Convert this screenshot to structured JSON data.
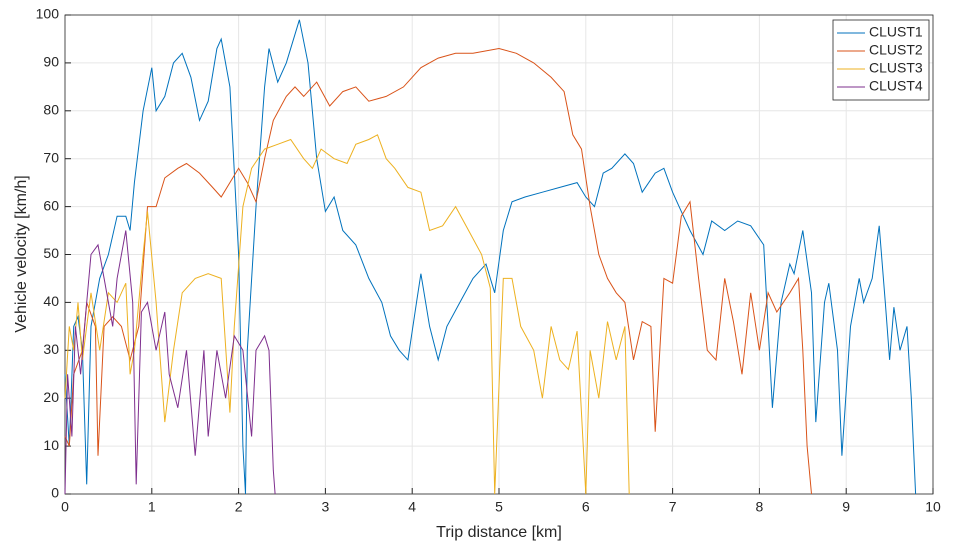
{
  "chart_data": {
    "type": "line",
    "xlabel": "Trip distance [km]",
    "ylabel": "Vehicle velocity [km/h]",
    "xlim": [
      0,
      10
    ],
    "xticks": [
      0,
      1,
      2,
      3,
      4,
      5,
      6,
      7,
      8,
      9,
      10
    ],
    "ylim": [
      0,
      100
    ],
    "yticks": [
      0,
      10,
      20,
      30,
      40,
      50,
      60,
      70,
      80,
      90,
      100
    ],
    "grid": true,
    "legend": "top-right",
    "series": [
      {
        "name": "CLUST1",
        "color": "#0072bd",
        "x": [
          0,
          0.05,
          0.1,
          0.15,
          0.2,
          0.25,
          0.3,
          0.4,
          0.5,
          0.6,
          0.7,
          0.75,
          0.8,
          0.9,
          1.0,
          1.05,
          1.15,
          1.25,
          1.35,
          1.45,
          1.55,
          1.65,
          1.75,
          1.8,
          1.9,
          2.0,
          2.05,
          2.08,
          2.1,
          2.2,
          2.3,
          2.35,
          2.45,
          2.55,
          2.7,
          2.8,
          2.9,
          3.0,
          3.1,
          3.2,
          3.35,
          3.5,
          3.65,
          3.75,
          3.85,
          3.95,
          4.05,
          4.1,
          4.2,
          4.3,
          4.4,
          4.55,
          4.7,
          4.85,
          4.95,
          5.05,
          5.15,
          5.3,
          5.5,
          5.7,
          5.9,
          6.0,
          6.1,
          6.2,
          6.3,
          6.45,
          6.55,
          6.65,
          6.8,
          6.9,
          7.0,
          7.1,
          7.2,
          7.35,
          7.45,
          7.6,
          7.75,
          7.9,
          8.05,
          8.1,
          8.15,
          8.25,
          8.35,
          8.4,
          8.5,
          8.6,
          8.65,
          8.75,
          8.8,
          8.9,
          8.95,
          9.05,
          9.15,
          9.2,
          9.3,
          9.38,
          9.45,
          9.5,
          9.55,
          9.62,
          9.7,
          9.75,
          9.8
        ],
        "values": [
          25,
          10,
          35,
          37,
          30,
          2,
          35,
          45,
          50,
          58,
          58,
          55,
          65,
          80,
          89,
          80,
          83,
          90,
          92,
          87,
          78,
          82,
          93,
          95,
          85,
          50,
          10,
          0,
          30,
          60,
          85,
          93,
          86,
          90,
          99,
          90,
          70,
          59,
          62,
          55,
          52,
          45,
          40,
          33,
          30,
          28,
          40,
          46,
          35,
          28,
          35,
          40,
          45,
          48,
          42,
          55,
          61,
          62,
          63,
          64,
          65,
          62,
          60,
          67,
          68,
          71,
          69,
          63,
          67,
          68,
          63,
          59,
          55,
          50,
          57,
          55,
          57,
          56,
          52,
          35,
          18,
          40,
          48,
          46,
          55,
          42,
          15,
          40,
          44,
          30,
          8,
          35,
          45,
          40,
          45,
          56,
          40,
          28,
          39,
          30,
          35,
          20,
          0
        ]
      },
      {
        "name": "CLUST2",
        "color": "#d95319",
        "x": [
          0,
          0.05,
          0.1,
          0.2,
          0.25,
          0.35,
          0.38,
          0.45,
          0.55,
          0.65,
          0.75,
          0.85,
          0.95,
          1.05,
          1.15,
          1.3,
          1.4,
          1.55,
          1.7,
          1.8,
          1.9,
          2.0,
          2.1,
          2.2,
          2.3,
          2.4,
          2.55,
          2.65,
          2.75,
          2.9,
          3.05,
          3.2,
          3.35,
          3.5,
          3.7,
          3.9,
          4.1,
          4.3,
          4.5,
          4.7,
          5.0,
          5.2,
          5.4,
          5.6,
          5.75,
          5.85,
          5.95,
          6.05,
          6.15,
          6.25,
          6.35,
          6.45,
          6.55,
          6.65,
          6.75,
          6.8,
          6.9,
          7.0,
          7.1,
          7.2,
          7.3,
          7.4,
          7.5,
          7.6,
          7.7,
          7.8,
          7.9,
          8.0,
          8.1,
          8.2,
          8.35,
          8.45,
          8.5,
          8.55,
          8.6
        ],
        "values": [
          12,
          10,
          25,
          30,
          40,
          35,
          8,
          35,
          37,
          35,
          28,
          35,
          60,
          60,
          66,
          68,
          69,
          67,
          64,
          62,
          65,
          68,
          65,
          61,
          70,
          78,
          83,
          85,
          83,
          86,
          81,
          84,
          85,
          82,
          83,
          85,
          89,
          91,
          92,
          92,
          93,
          92,
          90,
          87,
          84,
          75,
          72,
          60,
          50,
          45,
          42,
          40,
          28,
          36,
          35,
          13,
          45,
          44,
          58,
          61,
          45,
          30,
          28,
          45,
          36,
          25,
          42,
          30,
          42,
          38,
          42,
          45,
          30,
          10,
          0
        ]
      },
      {
        "name": "CLUST3",
        "color": "#edb120",
        "x": [
          0,
          0.05,
          0.1,
          0.15,
          0.2,
          0.3,
          0.4,
          0.5,
          0.6,
          0.7,
          0.75,
          0.8,
          0.9,
          0.95,
          1.05,
          1.15,
          1.25,
          1.35,
          1.5,
          1.65,
          1.8,
          1.9,
          1.95,
          2.05,
          2.15,
          2.3,
          2.45,
          2.6,
          2.75,
          2.85,
          2.95,
          3.1,
          3.25,
          3.35,
          3.5,
          3.6,
          3.7,
          3.8,
          3.95,
          4.1,
          4.2,
          4.35,
          4.5,
          4.65,
          4.8,
          4.9,
          4.95,
          5.05,
          5.15,
          5.25,
          5.4,
          5.5,
          5.6,
          5.7,
          5.8,
          5.9,
          6.0,
          6.05,
          6.15,
          6.25,
          6.35,
          6.45,
          6.5
        ],
        "values": [
          20,
          35,
          30,
          40,
          28,
          42,
          30,
          42,
          40,
          44,
          25,
          30,
          50,
          59,
          40,
          15,
          30,
          42,
          45,
          46,
          45,
          17,
          35,
          60,
          68,
          72,
          73,
          74,
          70,
          68,
          72,
          70,
          69,
          73,
          74,
          75,
          70,
          68,
          64,
          63,
          55,
          56,
          60,
          55,
          50,
          43,
          0,
          45,
          45,
          35,
          30,
          20,
          35,
          28,
          26,
          34,
          0,
          30,
          20,
          36,
          28,
          35,
          0
        ]
      },
      {
        "name": "CLUST4",
        "color": "#7e2f8e",
        "x": [
          0,
          0.03,
          0.08,
          0.12,
          0.18,
          0.25,
          0.3,
          0.38,
          0.45,
          0.55,
          0.6,
          0.7,
          0.78,
          0.82,
          0.88,
          0.95,
          1.05,
          1.15,
          1.2,
          1.3,
          1.4,
          1.5,
          1.6,
          1.65,
          1.75,
          1.85,
          1.95,
          2.05,
          2.15,
          2.2,
          2.3,
          2.35,
          2.4,
          2.42
        ],
        "values": [
          0,
          25,
          12,
          35,
          25,
          40,
          50,
          52,
          45,
          35,
          45,
          55,
          40,
          2,
          38,
          40,
          30,
          38,
          25,
          18,
          30,
          8,
          30,
          12,
          30,
          20,
          33,
          30,
          12,
          30,
          33,
          30,
          5,
          0
        ]
      }
    ]
  }
}
